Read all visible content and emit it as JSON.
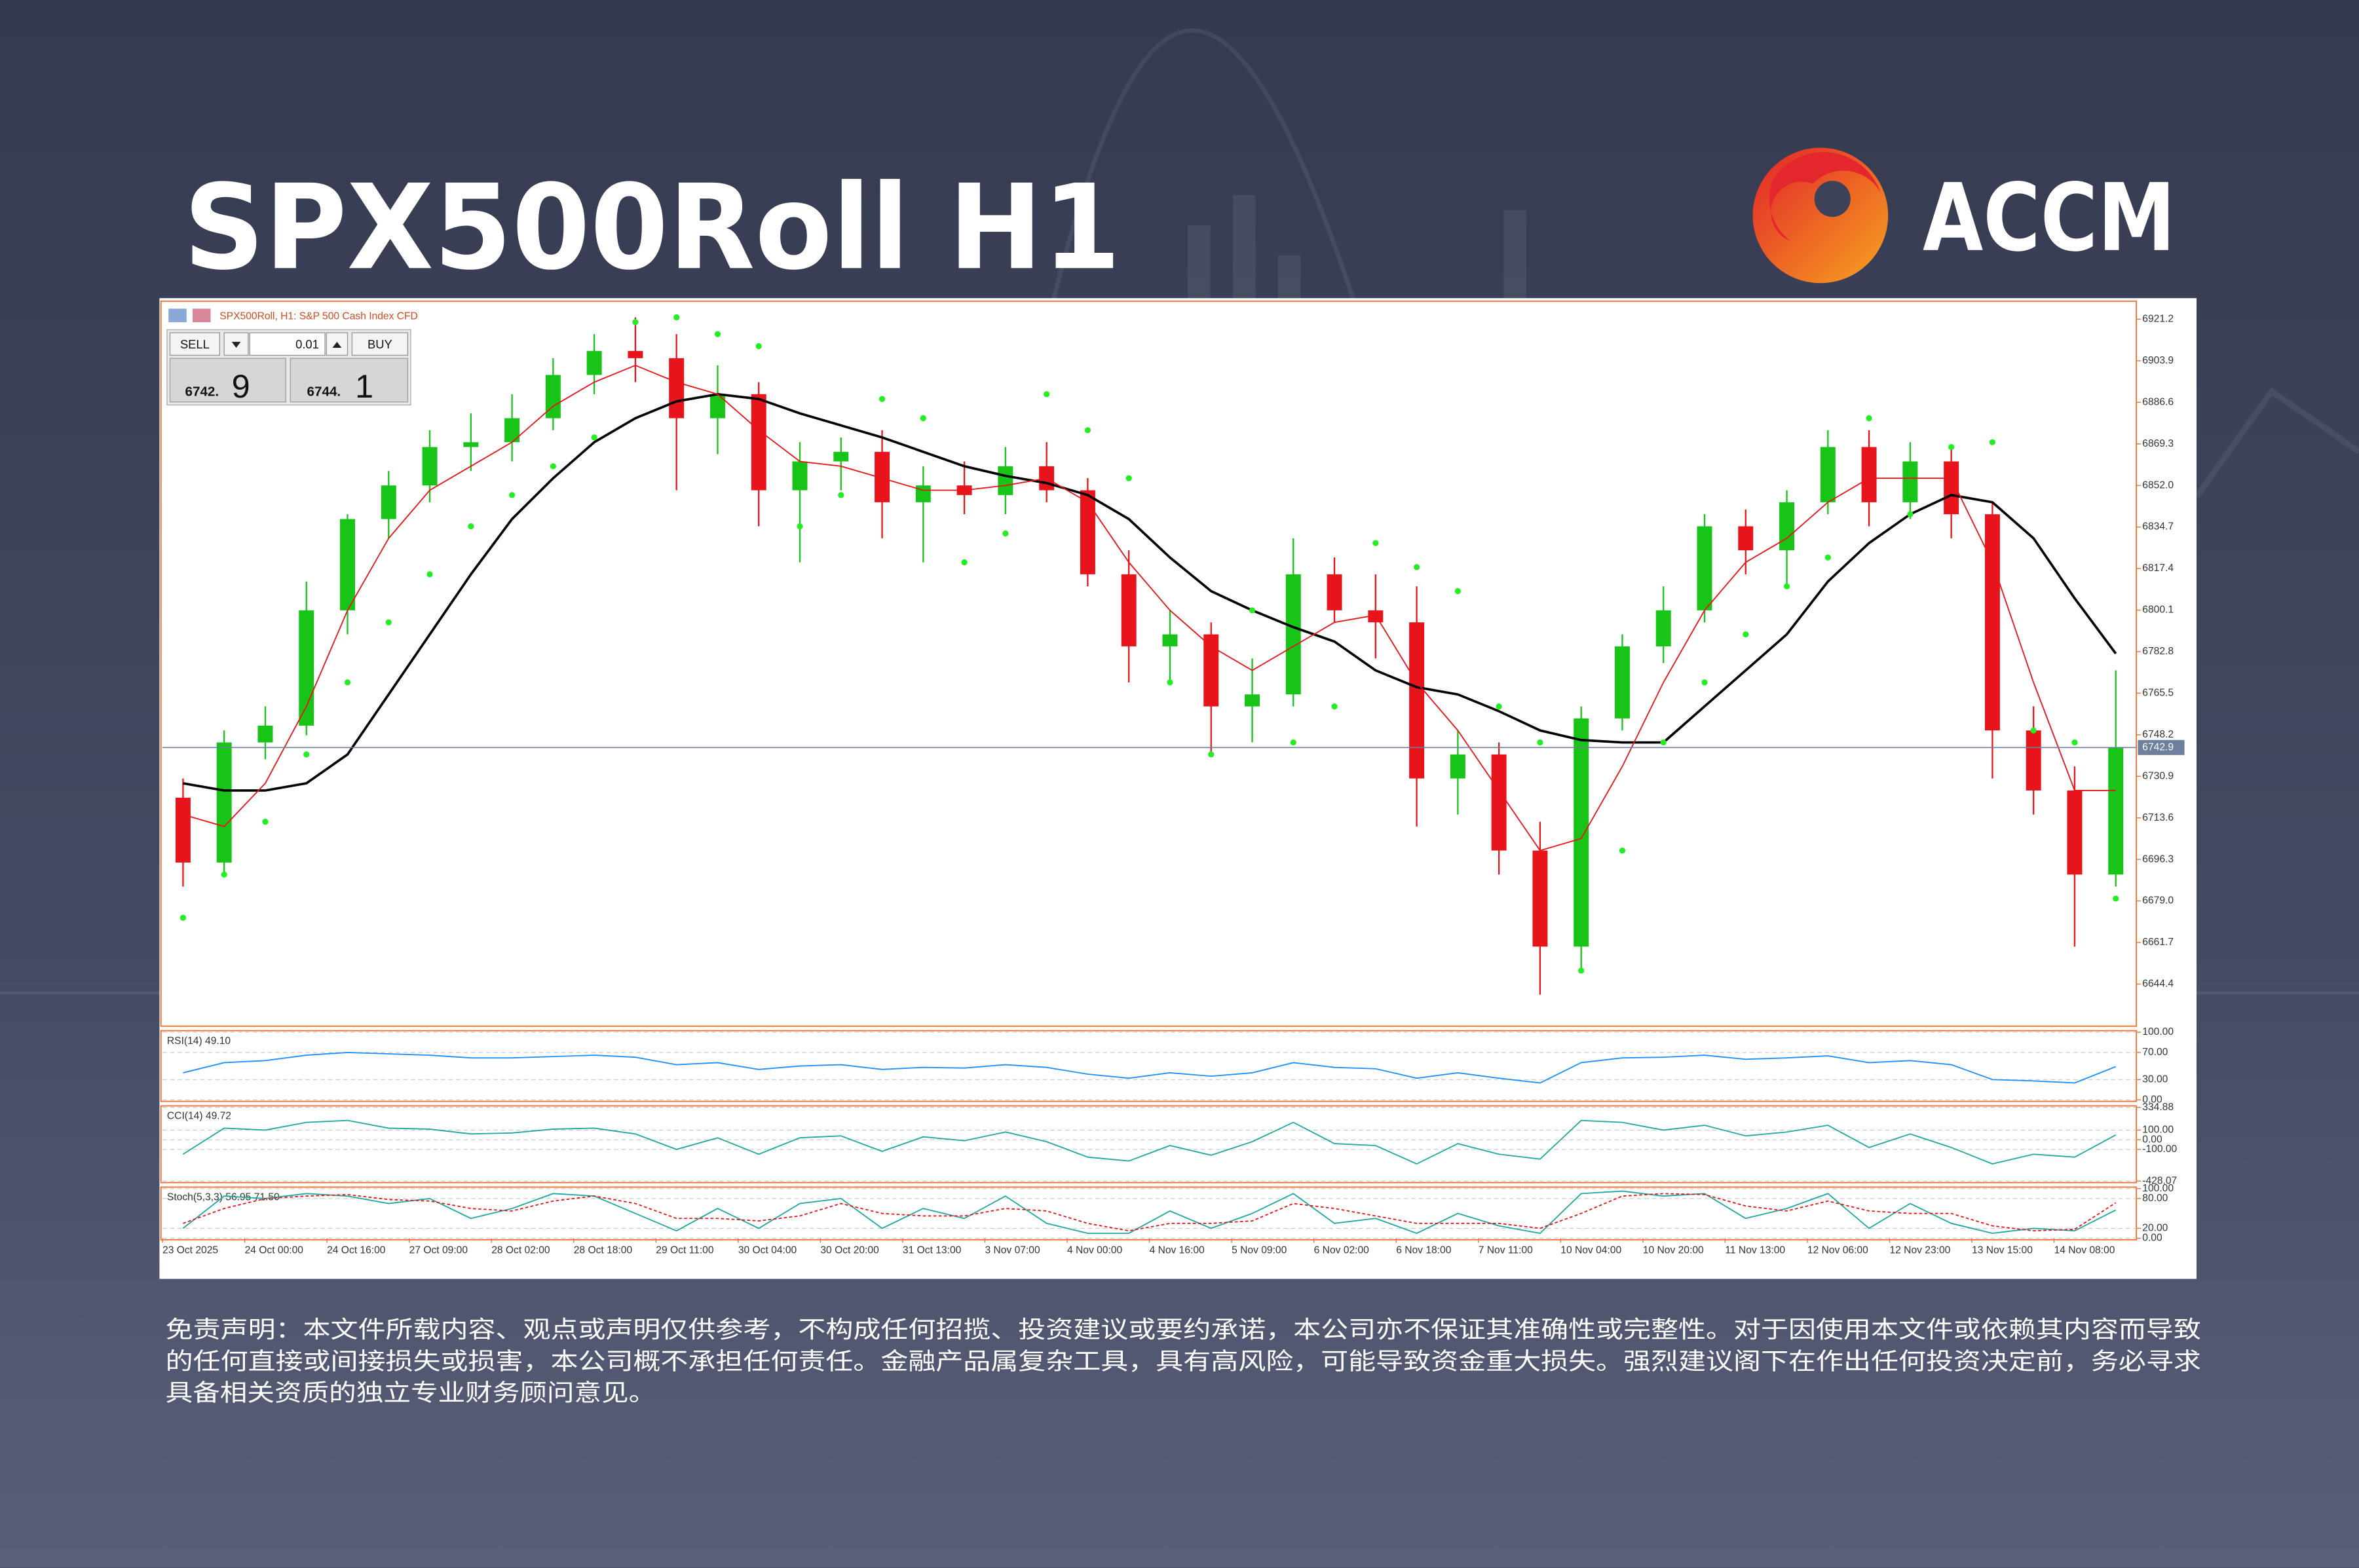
{
  "header": {
    "title": "SPX500Roll H1",
    "brand": "ACCM"
  },
  "terminal": {
    "header": "SPX500Roll, H1:  S&P 500 Cash Index CFD",
    "sell": "SELL",
    "buy": "BUY",
    "lot": "0.01",
    "bid_main": "6742.",
    "bid_big": "9",
    "ask_main": "6744.",
    "ask_big": "1"
  },
  "disclaimer": [
    "免责声明：本文件所载内容、观点或声明仅供参考，不构成任何招揽、投资建议或要约承诺，本公司亦不保证其准确性或完整性。对于因使用本文件或依赖其内容而导致",
    "的任何直接或间接损失或损害，本公司概不承担任何责任。金融产品属复杂工具，具有高风险，可能导致资金重大损失。强烈建议阁下在作出任何投资决定前，务必寻求",
    "具备相关资质的独立专业财务顾问意见。"
  ],
  "chart_data": [
    {
      "type": "candlestick",
      "categories": [
        "23 Oct 2025",
        null,
        "24 Oct 00:00",
        null,
        "24 Oct 16:00",
        null,
        "27 Oct 09:00",
        null,
        "28 Oct 02:00",
        null,
        "28 Oct 18:00",
        null,
        "29 Oct 11:00",
        null,
        "30 Oct 04:00",
        null,
        "30 Oct 20:00",
        null,
        "31 Oct 13:00",
        null,
        "3 Nov 07:00",
        null,
        "4 Nov 00:00",
        null,
        "4 Nov 16:00",
        null,
        "5 Nov 09:00",
        null,
        "6 Nov 02:00",
        null,
        "6 Nov 18:00",
        null,
        "7 Nov 11:00",
        null,
        "10 Nov 04:00",
        null,
        "10 Nov 20:00",
        null,
        "11 Nov 13:00",
        null,
        "12 Nov 06:00",
        null,
        "12 Nov 23:00",
        null,
        "13 Nov 15:00",
        null,
        "14 Nov 08:00",
        null
      ],
      "open": [
        6722,
        6695,
        6745,
        6752,
        6800,
        6838,
        6852,
        6868,
        6870,
        6880,
        6898,
        6908,
        6905,
        6880,
        6890,
        6850,
        6862,
        6866,
        6845,
        6852,
        6848,
        6860,
        6850,
        6815,
        6785,
        6790,
        6760,
        6765,
        6815,
        6800,
        6795,
        6730,
        6740,
        6700,
        6660,
        6755,
        6785,
        6800,
        6835,
        6825,
        6845,
        6868,
        6845,
        6862,
        6840,
        6750,
        6725,
        6690
      ],
      "high": [
        6730,
        6750,
        6760,
        6812,
        6840,
        6858,
        6875,
        6882,
        6890,
        6905,
        6915,
        6922,
        6915,
        6902,
        6895,
        6870,
        6872,
        6875,
        6860,
        6862,
        6868,
        6870,
        6855,
        6825,
        6800,
        6795,
        6780,
        6830,
        6822,
        6815,
        6810,
        6750,
        6745,
        6712,
        6760,
        6790,
        6810,
        6840,
        6842,
        6850,
        6875,
        6875,
        6870,
        6868,
        6845,
        6760,
        6735,
        6775
      ],
      "low": [
        6685,
        6690,
        6738,
        6748,
        6790,
        6830,
        6845,
        6858,
        6862,
        6875,
        6890,
        6895,
        6850,
        6865,
        6835,
        6820,
        6850,
        6830,
        6820,
        6840,
        6840,
        6845,
        6810,
        6770,
        6770,
        6740,
        6745,
        6760,
        6795,
        6780,
        6710,
        6715,
        6690,
        6640,
        6650,
        6750,
        6778,
        6795,
        6815,
        6810,
        6840,
        6835,
        6838,
        6830,
        6730,
        6715,
        6660,
        6685
      ],
      "close": [
        6695,
        6745,
        6752,
        6800,
        6838,
        6852,
        6868,
        6870,
        6880,
        6898,
        6908,
        6905,
        6880,
        6890,
        6850,
        6862,
        6866,
        6845,
        6852,
        6848,
        6860,
        6850,
        6815,
        6785,
        6790,
        6760,
        6765,
        6815,
        6800,
        6795,
        6730,
        6740,
        6700,
        6660,
        6755,
        6785,
        6800,
        6835,
        6825,
        6845,
        6868,
        6845,
        6862,
        6840,
        6750,
        6725,
        6690,
        6742.9
      ],
      "up_color": "#19c419",
      "down_color": "#e8141c",
      "lines": [
        {
          "color": "#000000",
          "values": [
            6728,
            6725,
            6725,
            6728,
            6740,
            6765,
            6790,
            6815,
            6838,
            6855,
            6870,
            6880,
            6887,
            6890,
            6888,
            6882,
            6877,
            6872,
            6866,
            6860,
            6856,
            6853,
            6848,
            6838,
            6822,
            6808,
            6800,
            6793,
            6787,
            6775,
            6768,
            6765,
            6758,
            6750,
            6746,
            6745,
            6745,
            6760,
            6775,
            6790,
            6812,
            6828,
            6840,
            6848,
            6845,
            6830,
            6805,
            6782
          ]
        },
        {
          "color": "#e8141c",
          "values": [
            6715,
            6710,
            6728,
            6760,
            6800,
            6830,
            6850,
            6860,
            6870,
            6885,
            6895,
            6902,
            6895,
            6890,
            6875,
            6862,
            6860,
            6855,
            6850,
            6850,
            6852,
            6855,
            6845,
            6820,
            6800,
            6785,
            6775,
            6785,
            6795,
            6798,
            6770,
            6750,
            6725,
            6700,
            6705,
            6735,
            6770,
            6800,
            6820,
            6830,
            6845,
            6855,
            6855,
            6855,
            6820,
            6770,
            6725,
            6725
          ]
        }
      ],
      "sar": {
        "color": "#22ee22",
        "values": [
          6672,
          6690,
          6712,
          6740,
          6770,
          6795,
          6815,
          6835,
          6848,
          6860,
          6872,
          6920,
          6922,
          6915,
          6910,
          6835,
          6848,
          6888,
          6880,
          6820,
          6832,
          6890,
          6875,
          6855,
          6770,
          6740,
          6800,
          6745,
          6760,
          6828,
          6818,
          6808,
          6760,
          6745,
          6650,
          6700,
          6745,
          6770,
          6790,
          6810,
          6822,
          6880,
          6840,
          6868,
          6870,
          6750,
          6745,
          6680
        ]
      },
      "current_price": 6742.9,
      "current_color": "#6d7f9c",
      "ylim": [
        6627.5,
        6928.1
      ],
      "yticks": [
        6921.2,
        6903.9,
        6886.6,
        6869.3,
        {
          "value": 6852,
          "label": "6852.0"
        },
        6834.7,
        6817.4,
        6800.1,
        6782.8,
        6765.5,
        6748.2,
        6730.9,
        6713.6,
        6696.3,
        {
          "value": 6679,
          "label": "6679.0"
        },
        6661.7,
        6644.4
      ]
    },
    {
      "type": "line",
      "title": "RSI(14) 49.10",
      "ylim": [
        0,
        100
      ],
      "grid": true,
      "yticks": [
        {
          "value": 100,
          "label": "100.00"
        },
        {
          "value": 70,
          "label": "70.00"
        },
        {
          "value": 30,
          "label": "30.00"
        },
        {
          "value": 0,
          "label": "0.00"
        }
      ],
      "series": [
        {
          "color": "#1e90ff",
          "values": [
            40,
            55,
            58,
            66,
            70,
            68,
            66,
            62,
            62,
            64,
            66,
            63,
            52,
            55,
            45,
            50,
            52,
            45,
            48,
            47,
            52,
            48,
            38,
            32,
            40,
            35,
            40,
            55,
            48,
            46,
            32,
            40,
            32,
            25,
            55,
            62,
            63,
            66,
            60,
            62,
            65,
            55,
            58,
            52,
            30,
            28,
            25,
            49.1
          ]
        }
      ]
    },
    {
      "type": "line",
      "title": "CCI(14) 49.72",
      "ylim": [
        -428.07,
        334.88
      ],
      "grid": true,
      "yticks": [
        {
          "value": 334.88,
          "label": "334.88"
        },
        {
          "value": 100,
          "label": "100.00"
        },
        {
          "value": 0,
          "label": "0.00"
        },
        {
          "value": -100,
          "label": "-100.00"
        },
        {
          "value": -428.07,
          "label": "-428.07"
        }
      ],
      "series": [
        {
          "color": "#20a8a0",
          "values": [
            -150,
            120,
            100,
            180,
            200,
            120,
            110,
            60,
            70,
            110,
            120,
            60,
            -100,
            20,
            -150,
            20,
            40,
            -120,
            30,
            -10,
            80,
            -20,
            -180,
            -220,
            -60,
            -160,
            -20,
            180,
            -40,
            -60,
            -250,
            -40,
            -150,
            -200,
            200,
            180,
            100,
            150,
            40,
            80,
            150,
            -80,
            60,
            -80,
            -250,
            -150,
            -180,
            49.72
          ]
        }
      ]
    },
    {
      "type": "line",
      "title": "Stoch(5,3,3) 56.95 71.50",
      "ylim": [
        0,
        100
      ],
      "grid": true,
      "yticks": [
        {
          "value": 100,
          "label": "100.00"
        },
        {
          "value": 80,
          "label": "80.00"
        },
        {
          "value": 20,
          "label": "20.00"
        },
        {
          "value": 0,
          "label": "0.00"
        }
      ],
      "series": [
        {
          "color": "#20a8a0",
          "line_style": "solid",
          "values": [
            20,
            85,
            80,
            90,
            85,
            70,
            80,
            40,
            60,
            90,
            85,
            50,
            15,
            60,
            20,
            70,
            80,
            20,
            60,
            40,
            85,
            30,
            10,
            10,
            55,
            20,
            50,
            90,
            30,
            40,
            10,
            50,
            25,
            10,
            90,
            95,
            85,
            90,
            40,
            60,
            90,
            20,
            70,
            30,
            10,
            20,
            15,
            56.95
          ]
        },
        {
          "color": "#e8141c",
          "line_style": "dashed",
          "values": [
            30,
            60,
            80,
            85,
            88,
            78,
            75,
            60,
            55,
            75,
            85,
            70,
            40,
            40,
            35,
            45,
            70,
            50,
            45,
            45,
            60,
            55,
            30,
            15,
            30,
            30,
            35,
            70,
            60,
            45,
            30,
            30,
            30,
            20,
            50,
            85,
            90,
            88,
            65,
            55,
            75,
            55,
            50,
            50,
            25,
            15,
            18,
            71.5
          ]
        }
      ]
    }
  ]
}
